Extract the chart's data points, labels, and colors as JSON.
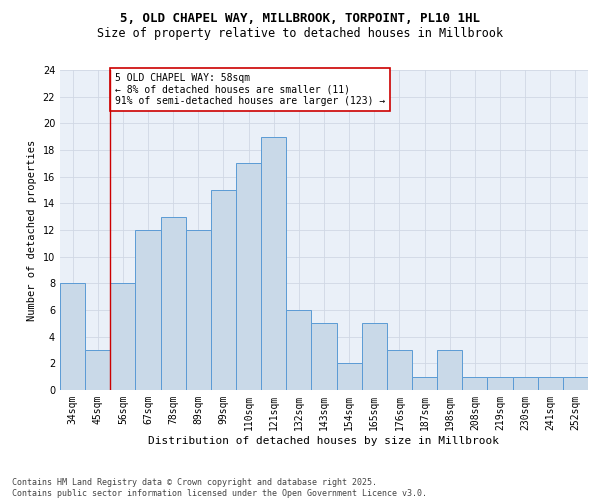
{
  "title": "5, OLD CHAPEL WAY, MILLBROOK, TORPOINT, PL10 1HL",
  "subtitle": "Size of property relative to detached houses in Millbrook",
  "xlabel": "Distribution of detached houses by size in Millbrook",
  "ylabel": "Number of detached properties",
  "bar_labels": [
    "34sqm",
    "45sqm",
    "56sqm",
    "67sqm",
    "78sqm",
    "89sqm",
    "99sqm",
    "110sqm",
    "121sqm",
    "132sqm",
    "143sqm",
    "154sqm",
    "165sqm",
    "176sqm",
    "187sqm",
    "198sqm",
    "208sqm",
    "219sqm",
    "230sqm",
    "241sqm",
    "252sqm"
  ],
  "bar_values": [
    8,
    3,
    8,
    12,
    13,
    12,
    15,
    17,
    19,
    6,
    5,
    2,
    5,
    3,
    1,
    3,
    1,
    1,
    1,
    1,
    1
  ],
  "bar_color": "#c9d9e8",
  "bar_edge_color": "#5b9bd5",
  "grid_color": "#d0d8e4",
  "background_color": "#eaf0f8",
  "vline_x": 1.5,
  "vline_color": "#cc0000",
  "annotation_text": "5 OLD CHAPEL WAY: 58sqm\n← 8% of detached houses are smaller (11)\n91% of semi-detached houses are larger (123) →",
  "annotation_box_color": "#ffffff",
  "annotation_box_edge": "#cc0000",
  "ylim": [
    0,
    24
  ],
  "yticks": [
    0,
    2,
    4,
    6,
    8,
    10,
    12,
    14,
    16,
    18,
    20,
    22,
    24
  ],
  "footer": "Contains HM Land Registry data © Crown copyright and database right 2025.\nContains public sector information licensed under the Open Government Licence v3.0.",
  "title_fontsize": 9,
  "subtitle_fontsize": 8.5,
  "xlabel_fontsize": 8,
  "ylabel_fontsize": 7.5,
  "tick_fontsize": 7,
  "annotation_fontsize": 7,
  "footer_fontsize": 6
}
